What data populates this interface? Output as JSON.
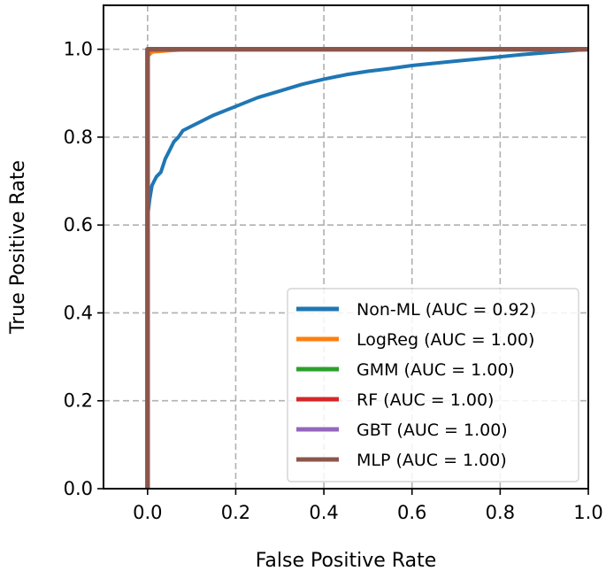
{
  "chart_data": {
    "type": "line",
    "title": "",
    "xlabel": "False Positive Rate",
    "ylabel": "True Positive Rate",
    "xlim": [
      -0.1,
      1.0
    ],
    "ylim": [
      0.0,
      1.1
    ],
    "x_ticks": [
      "0.0",
      "0.2",
      "0.4",
      "0.6",
      "0.8",
      "1.0"
    ],
    "y_ticks": [
      "0.0",
      "0.2",
      "0.4",
      "0.6",
      "0.8",
      "1.0"
    ],
    "grid": true,
    "legend_position": "bottom-right",
    "series": [
      {
        "name": "Non-ML (AUC = 0.92)",
        "color": "#1f77b4",
        "x": [
          0.0,
          0.0,
          0.005,
          0.01,
          0.015,
          0.02,
          0.03,
          0.04,
          0.05,
          0.06,
          0.07,
          0.08,
          0.1,
          0.12,
          0.15,
          0.2,
          0.25,
          0.3,
          0.35,
          0.4,
          0.45,
          0.5,
          0.55,
          0.6,
          0.65,
          0.7,
          0.75,
          0.8,
          0.85,
          0.9,
          0.95,
          1.0
        ],
        "y": [
          0.0,
          0.62,
          0.66,
          0.69,
          0.7,
          0.71,
          0.72,
          0.75,
          0.77,
          0.79,
          0.8,
          0.815,
          0.825,
          0.835,
          0.85,
          0.87,
          0.89,
          0.905,
          0.92,
          0.932,
          0.942,
          0.95,
          0.956,
          0.963,
          0.968,
          0.973,
          0.978,
          0.983,
          0.988,
          0.992,
          0.996,
          1.0
        ]
      },
      {
        "name": "LogReg (AUC = 1.00)",
        "color": "#ff7f0e",
        "x": [
          0.0,
          0.0,
          0.01,
          0.08,
          1.0
        ],
        "y": [
          0.0,
          0.985,
          0.995,
          1.0,
          1.0
        ]
      },
      {
        "name": "GMM (AUC = 1.00)",
        "color": "#2ca02c",
        "x": [
          0.0,
          0.0,
          1.0
        ],
        "y": [
          0.0,
          1.0,
          1.0
        ]
      },
      {
        "name": "RF (AUC = 1.00)",
        "color": "#d62728",
        "x": [
          0.0,
          0.0,
          1.0
        ],
        "y": [
          0.0,
          1.0,
          1.0
        ]
      },
      {
        "name": "GBT (AUC = 1.00)",
        "color": "#9467bd",
        "x": [
          0.0,
          0.0,
          1.0
        ],
        "y": [
          0.0,
          1.0,
          1.0
        ]
      },
      {
        "name": "MLP (AUC = 1.00)",
        "color": "#8c564b",
        "x": [
          0.0,
          0.0,
          1.0
        ],
        "y": [
          0.0,
          1.0,
          1.0
        ]
      }
    ]
  }
}
